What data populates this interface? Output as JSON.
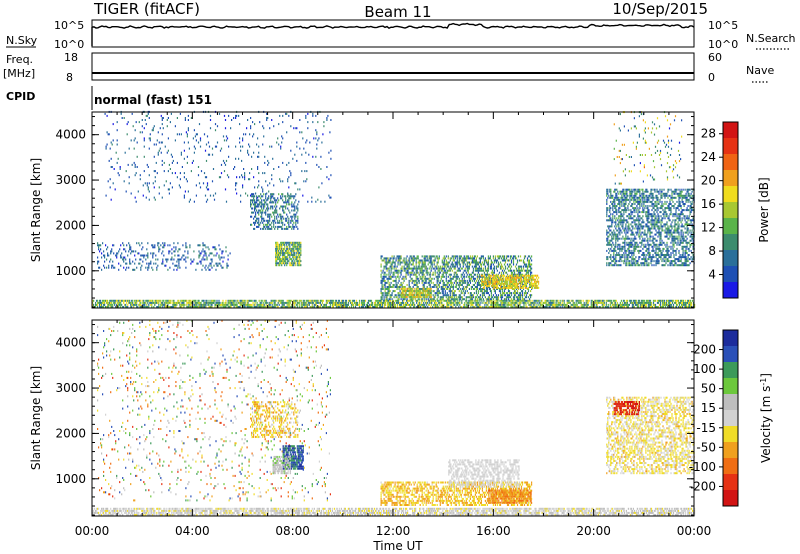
{
  "header": {
    "radar": "TIGER (fitACF)",
    "beam": "Beam 11",
    "date": "10/Sep/2015"
  },
  "status_panels": {
    "nsky": {
      "label": "N.Sky",
      "ticks": [
        "10^5",
        "10^0"
      ]
    },
    "nsearch": {
      "label": "N.Search",
      "ticks": [
        "10^5",
        "10^0"
      ]
    },
    "freq": {
      "label": "Freq.",
      "unit": "[MHz]",
      "ticks": [
        "18",
        "8"
      ]
    },
    "nave": {
      "label": "Nave",
      "ticks": [
        "60",
        "0"
      ]
    },
    "cpid": {
      "label": "CPID",
      "value": "normal (fast) 151"
    }
  },
  "colors": {
    "power": [
      "#1a1ae6",
      "#1e50b4",
      "#2a6f9a",
      "#3c8c6e",
      "#5ab44a",
      "#a8c832",
      "#f0dc1e",
      "#f0a01e",
      "#f06414",
      "#e63214",
      "#d21414"
    ],
    "velocity": [
      "#1c2c9c",
      "#2a50b8",
      "#3c9a5a",
      "#6cc83c",
      "#bebebe",
      "#d2d2d2",
      "#f0dc28",
      "#f0a01e",
      "#f06e14",
      "#e63214",
      "#d21414"
    ]
  },
  "chart_data": [
    {
      "type": "heatmap",
      "quantity": "Power",
      "xlabel": "Time UT",
      "ylabel": "Slant Range [km]",
      "x_ticks": [
        "00:00",
        "04:00",
        "08:00",
        "12:00",
        "16:00",
        "20:00",
        "00:00"
      ],
      "xlim_hours": [
        0,
        24
      ],
      "ylim_km": [
        180,
        4500
      ],
      "y_ticks": [
        1000,
        2000,
        3000,
        4000
      ],
      "colorbar": {
        "label": "Power [dB]",
        "ticks": [
          4,
          8,
          12,
          16,
          20,
          24,
          28
        ],
        "range": [
          0,
          30
        ]
      },
      "regions": [
        {
          "t0": 0,
          "t1": 24,
          "r0": 180,
          "r1": 320,
          "v0": 6,
          "v1": 18,
          "density": 0.75
        },
        {
          "t0": 0.2,
          "t1": 5.5,
          "r0": 1000,
          "r1": 1600,
          "v0": 2,
          "v1": 9,
          "density": 0.18
        },
        {
          "t0": 0.5,
          "t1": 9.5,
          "r0": 2500,
          "r1": 4500,
          "v0": 2,
          "v1": 9,
          "density": 0.05
        },
        {
          "t0": 6.3,
          "t1": 8.2,
          "r0": 1900,
          "r1": 2700,
          "v0": 3,
          "v1": 12,
          "density": 0.45
        },
        {
          "t0": 7.3,
          "t1": 8.3,
          "r0": 1100,
          "r1": 1600,
          "v0": 6,
          "v1": 18,
          "density": 0.8
        },
        {
          "t0": 11.5,
          "t1": 17.5,
          "r0": 350,
          "r1": 1300,
          "v0": 3,
          "v1": 16,
          "density": 0.55
        },
        {
          "t0": 12.3,
          "t1": 13.5,
          "r0": 400,
          "r1": 600,
          "v0": 12,
          "v1": 22,
          "density": 0.8
        },
        {
          "t0": 15.5,
          "t1": 17.8,
          "r0": 600,
          "r1": 900,
          "v0": 14,
          "v1": 21,
          "density": 0.7
        },
        {
          "t0": 20.5,
          "t1": 24,
          "r0": 1100,
          "r1": 2800,
          "v0": 3,
          "v1": 12,
          "density": 0.5
        },
        {
          "t0": 20.8,
          "t1": 23.5,
          "r0": 2900,
          "r1": 4500,
          "v0": 2,
          "v1": 22,
          "density": 0.05
        }
      ]
    },
    {
      "type": "heatmap",
      "quantity": "Velocity",
      "xlabel": "Time UT",
      "ylabel": "Slant Range [km]",
      "x_ticks": [
        "00:00",
        "04:00",
        "08:00",
        "12:00",
        "16:00",
        "20:00",
        "00:00"
      ],
      "xlim_hours": [
        0,
        24
      ],
      "ylim_km": [
        180,
        4500
      ],
      "y_ticks": [
        1000,
        2000,
        3000,
        4000
      ],
      "colorbar": {
        "label": "Velocity [m s^-1]",
        "ticks": [
          "200",
          "100",
          "50",
          "15",
          "-15",
          "-50",
          "-100",
          "-200"
        ],
        "range": [
          -250,
          250
        ]
      },
      "regions": [
        {
          "t0": 0,
          "t1": 24,
          "r0": 180,
          "r1": 320,
          "v0": -40,
          "v1": 60,
          "density": 0.7
        },
        {
          "t0": 0.2,
          "t1": 9.5,
          "r0": 500,
          "r1": 4500,
          "v0": -200,
          "v1": 200,
          "density": 0.05
        },
        {
          "t0": 6.3,
          "t1": 8.2,
          "r0": 1900,
          "r1": 2700,
          "v0": -100,
          "v1": 0,
          "density": 0.4
        },
        {
          "t0": 7.6,
          "t1": 8.4,
          "r0": 1200,
          "r1": 1700,
          "v0": 120,
          "v1": 240,
          "density": 0.85
        },
        {
          "t0": 7.2,
          "t1": 7.9,
          "r0": 1100,
          "r1": 1500,
          "v0": 20,
          "v1": 80,
          "density": 0.7
        },
        {
          "t0": 11.5,
          "t1": 17.5,
          "r0": 400,
          "r1": 900,
          "v0": -110,
          "v1": -20,
          "density": 0.55
        },
        {
          "t0": 14.2,
          "t1": 17.0,
          "r0": 800,
          "r1": 1400,
          "v0": -12,
          "v1": 12,
          "density": 0.5
        },
        {
          "t0": 15.8,
          "t1": 17.5,
          "r0": 450,
          "r1": 750,
          "v0": -160,
          "v1": -60,
          "density": 0.75
        },
        {
          "t0": 20.5,
          "t1": 24,
          "r0": 1100,
          "r1": 2800,
          "v0": -80,
          "v1": 20,
          "density": 0.45
        },
        {
          "t0": 20.8,
          "t1": 21.8,
          "r0": 2400,
          "r1": 2700,
          "v0": -240,
          "v1": -150,
          "density": 0.7
        }
      ]
    }
  ]
}
